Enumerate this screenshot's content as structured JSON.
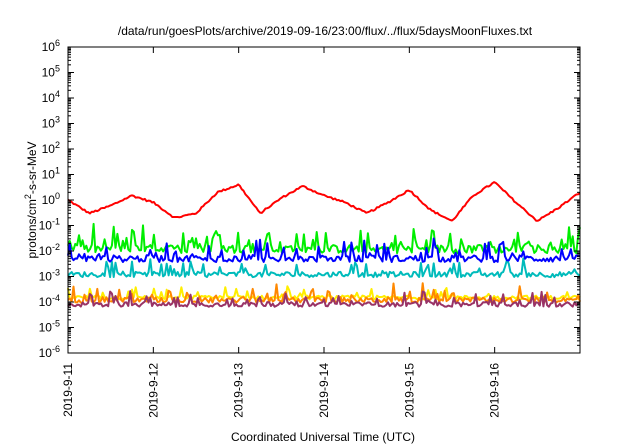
{
  "chart_data": {
    "type": "line",
    "title": "/data/run/goesPlots/archive/2019-09-16/23:00/flux/../flux/5daysMoonFluxes.txt",
    "xlabel": "Coordinated Universal Time (UTC)",
    "ylabel_parts": [
      "protons/cm",
      "2",
      "-s-sr-MeV"
    ],
    "y_scale": "log",
    "ylim": [
      1e-06,
      1000000.0
    ],
    "y_ticks": [
      {
        "base": "10",
        "exp": "-6",
        "value": 1e-06
      },
      {
        "base": "10",
        "exp": "-5",
        "value": 1e-05
      },
      {
        "base": "10",
        "exp": "-4",
        "value": 0.0001
      },
      {
        "base": "10",
        "exp": "-3",
        "value": 0.001
      },
      {
        "base": "10",
        "exp": "-2",
        "value": 0.01
      },
      {
        "base": "10",
        "exp": "-1",
        "value": 0.1
      },
      {
        "base": "10",
        "exp": "0",
        "value": 1
      },
      {
        "base": "10",
        "exp": "1",
        "value": 10
      },
      {
        "base": "10",
        "exp": "2",
        "value": 100
      },
      {
        "base": "10",
        "exp": "3",
        "value": 1000
      },
      {
        "base": "10",
        "exp": "4",
        "value": 10000
      },
      {
        "base": "10",
        "exp": "5",
        "value": 100000
      },
      {
        "base": "10",
        "exp": "6",
        "value": 1000000
      }
    ],
    "xlim": [
      "2019-09-11T00:00",
      "2019-09-17T00:00"
    ],
    "x_tick_labels": [
      "2019-9-11",
      "2019-9-12",
      "2019-9-13",
      "2019-9-14",
      "2019-9-15",
      "2019-9-16"
    ],
    "grid": false,
    "legend": "none",
    "series": [
      {
        "color": "#ff0000",
        "x": [
          "2019-09-11T00:00",
          "2019-09-11T06:00",
          "2019-09-11T12:00",
          "2019-09-11T18:00",
          "2019-09-12T00:00",
          "2019-09-12T06:00",
          "2019-09-12T12:00",
          "2019-09-12T18:00",
          "2019-09-13T00:00",
          "2019-09-13T06:00",
          "2019-09-13T12:00",
          "2019-09-13T18:00",
          "2019-09-14T00:00",
          "2019-09-14T06:00",
          "2019-09-14T12:00",
          "2019-09-14T18:00",
          "2019-09-15T00:00",
          "2019-09-15T06:00",
          "2019-09-15T12:00",
          "2019-09-15T18:00",
          "2019-09-16T00:00",
          "2019-09-16T06:00",
          "2019-09-16T12:00",
          "2019-09-16T18:00",
          "2019-09-17T00:00"
        ],
        "values": [
          1.0,
          0.3,
          0.6,
          1.5,
          0.8,
          0.2,
          0.3,
          2.0,
          4.0,
          0.3,
          1.2,
          3.5,
          1.5,
          0.8,
          0.3,
          0.8,
          2.5,
          0.4,
          0.15,
          1.5,
          5.0,
          0.8,
          0.15,
          0.5,
          2.0
        ]
      },
      {
        "color": "#00ee00",
        "x": [
          "2019-09-11T00:00",
          "2019-09-12T00:00",
          "2019-09-13T00:00",
          "2019-09-14T00:00",
          "2019-09-15T00:00",
          "2019-09-16T00:00",
          "2019-09-17T00:00"
        ],
        "values": [
          0.012,
          0.012,
          0.012,
          0.012,
          0.012,
          0.012,
          0.012
        ]
      },
      {
        "color": "#00bbbb",
        "x": [
          "2019-09-11T00:00",
          "2019-09-12T00:00",
          "2019-09-13T00:00",
          "2019-09-14T00:00",
          "2019-09-15T00:00",
          "2019-09-16T00:00",
          "2019-09-17T00:00"
        ],
        "values": [
          0.0012,
          0.0012,
          0.0012,
          0.0012,
          0.0012,
          0.0012,
          0.0012
        ]
      },
      {
        "color": "#0000ff",
        "x": [
          "2019-09-11T00:00",
          "2019-09-12T00:00",
          "2019-09-13T00:00",
          "2019-09-14T00:00",
          "2019-09-15T00:00",
          "2019-09-16T00:00",
          "2019-09-17T00:00"
        ],
        "values": [
          0.005,
          0.005,
          0.005,
          0.005,
          0.005,
          0.005,
          0.005
        ]
      },
      {
        "color": "#ffee00",
        "x": [
          "2019-09-11T00:00",
          "2019-09-12T00:00",
          "2019-09-13T00:00",
          "2019-09-14T00:00",
          "2019-09-15T00:00",
          "2019-09-16T00:00",
          "2019-09-17T00:00"
        ],
        "values": [
          0.00015,
          0.00015,
          0.00015,
          0.00015,
          0.00015,
          0.00015,
          0.00015
        ]
      },
      {
        "color": "#ff8800",
        "x": [
          "2019-09-11T00:00",
          "2019-09-12T00:00",
          "2019-09-13T00:00",
          "2019-09-14T00:00",
          "2019-09-15T00:00",
          "2019-09-16T00:00",
          "2019-09-17T00:00"
        ],
        "values": [
          0.00012,
          0.00012,
          0.00012,
          0.00012,
          0.00012,
          0.00012,
          0.00012
        ]
      },
      {
        "color": "#993366",
        "x": [
          "2019-09-11T00:00",
          "2019-09-12T00:00",
          "2019-09-13T00:00",
          "2019-09-14T00:00",
          "2019-09-15T00:00",
          "2019-09-16T00:00",
          "2019-09-17T00:00"
        ],
        "values": [
          8e-05,
          8e-05,
          8e-05,
          8e-05,
          8e-05,
          8e-05,
          8e-05
        ]
      }
    ]
  }
}
